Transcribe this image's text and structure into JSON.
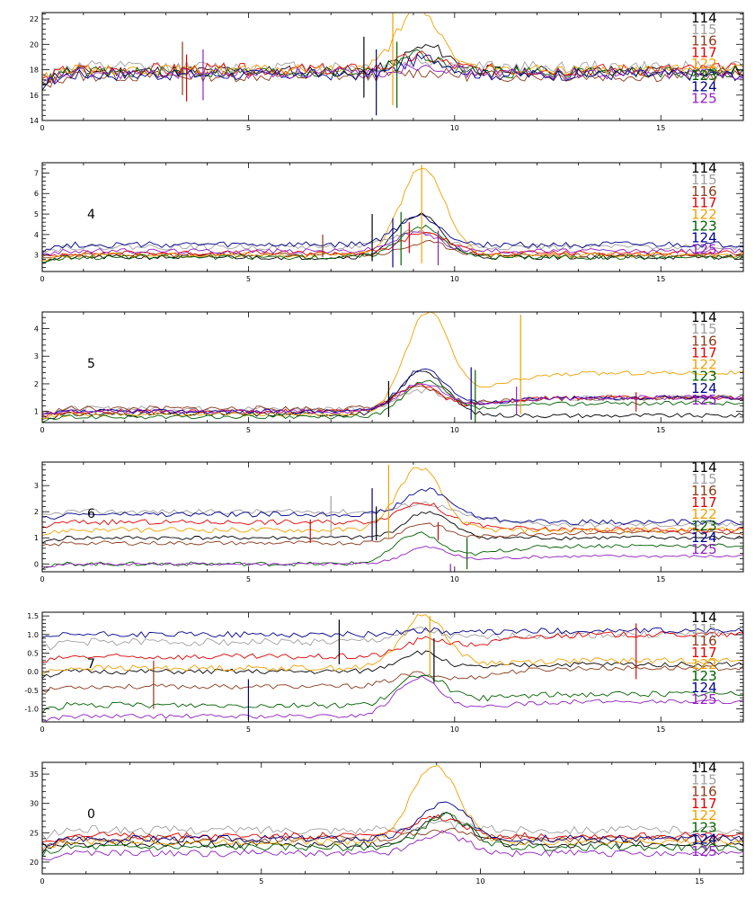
{
  "chart_data": [
    {
      "type": "line",
      "panel_label": "",
      "xlim": [
        0,
        17
      ],
      "xticks": [
        0,
        5,
        10,
        15
      ],
      "ylim": [
        14,
        22.5
      ],
      "yticks": [
        14,
        16,
        18,
        20,
        22
      ],
      "legend": [
        "114",
        "115",
        "116",
        "117",
        "122",
        "123",
        "124",
        "125"
      ],
      "series": [
        {
          "name": "114",
          "color": "#000000",
          "baseline": 17.9,
          "noise": 0.45,
          "peak": 1.9,
          "seed": 11
        },
        {
          "name": "115",
          "color": "#a0a0a0",
          "baseline": 18.2,
          "noise": 0.5,
          "peak": 0.5,
          "seed": 12
        },
        {
          "name": "116",
          "color": "#8b3a1a",
          "baseline": 17.5,
          "noise": 0.45,
          "peak": 0.3,
          "seed": 13
        },
        {
          "name": "117",
          "color": "#e00000",
          "baseline": 18.0,
          "noise": 0.5,
          "peak": 1.0,
          "seed": 14
        },
        {
          "name": "122",
          "color": "#f0a000",
          "baseline": 18.0,
          "noise": 0.4,
          "peak": 4.6,
          "seed": 15
        },
        {
          "name": "123",
          "color": "#006000",
          "baseline": 17.8,
          "noise": 0.45,
          "peak": 1.4,
          "seed": 16
        },
        {
          "name": "124",
          "color": "#00008b",
          "baseline": 17.6,
          "noise": 0.45,
          "peak": 1.3,
          "seed": 17
        },
        {
          "name": "125",
          "color": "#9020c0",
          "baseline": 17.7,
          "noise": 0.45,
          "peak": 0.7,
          "seed": 18
        }
      ],
      "markers": [
        {
          "x": 3.4,
          "y1": 16.0,
          "y2": 20.2,
          "color": "#8b3a1a"
        },
        {
          "x": 3.5,
          "y1": 15.5,
          "y2": 19.2,
          "color": "#e00000"
        },
        {
          "x": 3.9,
          "y1": 15.6,
          "y2": 19.6,
          "color": "#9020c0"
        },
        {
          "x": 7.8,
          "y1": 15.8,
          "y2": 20.6,
          "color": "#000000"
        },
        {
          "x": 8.1,
          "y1": 14.4,
          "y2": 19.6,
          "color": "#00008b"
        },
        {
          "x": 8.5,
          "y1": 15.2,
          "y2": 22.5,
          "color": "#f0a000"
        },
        {
          "x": 8.6,
          "y1": 15.0,
          "y2": 20.2,
          "color": "#006000"
        }
      ]
    },
    {
      "type": "line",
      "panel_label": "4",
      "xlim": [
        0,
        17
      ],
      "xticks": [
        0,
        5,
        10,
        15
      ],
      "ylim": [
        2.2,
        7.5
      ],
      "yticks": [
        3,
        4,
        5,
        6,
        7
      ],
      "legend": [
        "114",
        "115",
        "116",
        "117",
        "122",
        "123",
        "124",
        "125"
      ],
      "series": [
        {
          "name": "114",
          "color": "#000000",
          "baseline": 2.9,
          "noise": 0.12,
          "peak": 2.1,
          "seed": 21
        },
        {
          "name": "115",
          "color": "#a0a0a0",
          "baseline": 3.4,
          "noise": 0.15,
          "peak": 0.8,
          "seed": 22
        },
        {
          "name": "116",
          "color": "#8b3a1a",
          "baseline": 3.0,
          "noise": 0.12,
          "peak": 0.6,
          "seed": 23
        },
        {
          "name": "117",
          "color": "#e00000",
          "baseline": 3.1,
          "noise": 0.12,
          "peak": 1.0,
          "seed": 24
        },
        {
          "name": "122",
          "color": "#f0a000",
          "baseline": 3.0,
          "noise": 0.12,
          "peak": 4.3,
          "seed": 25
        },
        {
          "name": "123",
          "color": "#006000",
          "baseline": 2.9,
          "noise": 0.12,
          "peak": 1.5,
          "seed": 26
        },
        {
          "name": "124",
          "color": "#00008b",
          "baseline": 3.5,
          "noise": 0.15,
          "peak": 1.4,
          "seed": 27
        },
        {
          "name": "125",
          "color": "#9020c0",
          "baseline": 3.2,
          "noise": 0.12,
          "peak": 0.9,
          "seed": 28
        }
      ],
      "markers": [
        {
          "x": 6.8,
          "y1": 2.9,
          "y2": 4.0,
          "color": "#8b3a1a"
        },
        {
          "x": 8.0,
          "y1": 2.7,
          "y2": 5.0,
          "color": "#000000"
        },
        {
          "x": 8.5,
          "y1": 2.4,
          "y2": 4.8,
          "color": "#00008b"
        },
        {
          "x": 8.7,
          "y1": 2.5,
          "y2": 5.1,
          "color": "#006000"
        },
        {
          "x": 8.9,
          "y1": 3.1,
          "y2": 4.6,
          "color": "#e00000"
        },
        {
          "x": 9.2,
          "y1": 2.6,
          "y2": 7.4,
          "color": "#f0a000"
        },
        {
          "x": 9.6,
          "y1": 2.5,
          "y2": 4.2,
          "color": "#9020c0"
        }
      ]
    },
    {
      "type": "line",
      "panel_label": "5",
      "xlim": [
        0,
        17
      ],
      "xticks": [
        0,
        5,
        10,
        15
      ],
      "ylim": [
        0.6,
        4.6
      ],
      "yticks": [
        1,
        2,
        3,
        4
      ],
      "legend": [
        "114",
        "115",
        "116",
        "117",
        "122",
        "123",
        "124",
        "125"
      ],
      "series": [
        {
          "name": "114",
          "color": "#000000",
          "baseline": 0.9,
          "noise": 0.08,
          "peak": 1.6,
          "seed": 31,
          "tail": -0.05
        },
        {
          "name": "115",
          "color": "#a0a0a0",
          "baseline": 1.1,
          "noise": 0.1,
          "peak": 0.6,
          "seed": 32,
          "tail": 0.4
        },
        {
          "name": "116",
          "color": "#8b3a1a",
          "baseline": 1.1,
          "noise": 0.1,
          "peak": 0.7,
          "seed": 33,
          "tail": 0.4
        },
        {
          "name": "117",
          "color": "#e00000",
          "baseline": 1.0,
          "noise": 0.08,
          "peak": 0.9,
          "seed": 34,
          "tail": 0.5
        },
        {
          "name": "122",
          "color": "#f0a000",
          "baseline": 0.9,
          "noise": 0.08,
          "peak": 3.5,
          "seed": 35,
          "tail": 1.5
        },
        {
          "name": "123",
          "color": "#006000",
          "baseline": 0.8,
          "noise": 0.08,
          "peak": 1.2,
          "seed": 36,
          "tail": 0.5
        },
        {
          "name": "124",
          "color": "#00008b",
          "baseline": 1.0,
          "noise": 0.08,
          "peak": 1.5,
          "seed": 37,
          "tail": 0.5
        },
        {
          "name": "125",
          "color": "#9020c0",
          "baseline": 1.0,
          "noise": 0.08,
          "peak": 1.0,
          "seed": 38,
          "tail": 0.5
        }
      ],
      "markers": [
        {
          "x": 8.4,
          "y1": 0.8,
          "y2": 2.1,
          "color": "#000000"
        },
        {
          "x": 10.4,
          "y1": 0.7,
          "y2": 2.6,
          "color": "#00008b"
        },
        {
          "x": 10.5,
          "y1": 0.6,
          "y2": 2.5,
          "color": "#006000"
        },
        {
          "x": 11.5,
          "y1": 0.9,
          "y2": 1.9,
          "color": "#9020c0"
        },
        {
          "x": 11.6,
          "y1": 0.9,
          "y2": 4.5,
          "color": "#f0a000"
        },
        {
          "x": 14.4,
          "y1": 1.0,
          "y2": 1.7,
          "color": "#e00000"
        }
      ]
    },
    {
      "type": "line",
      "panel_label": "6",
      "xlim": [
        0,
        17
      ],
      "xticks": [
        0,
        5,
        10,
        15
      ],
      "ylim": [
        -0.3,
        3.9
      ],
      "yticks": [
        0,
        1,
        2,
        3
      ],
      "legend": [
        "114",
        "115",
        "116",
        "117",
        "122",
        "123",
        "124",
        "125"
      ],
      "series": [
        {
          "name": "114",
          "color": "#000000",
          "baseline": 1.0,
          "noise": 0.08,
          "peak": 1.0,
          "seed": 41
        },
        {
          "name": "115",
          "color": "#a0a0a0",
          "baseline": 2.0,
          "noise": 0.1,
          "peak": 0.4,
          "seed": 42,
          "tail": -0.5
        },
        {
          "name": "116",
          "color": "#8b3a1a",
          "baseline": 0.8,
          "noise": 0.08,
          "peak": 0.7,
          "seed": 43,
          "tail": 0.4
        },
        {
          "name": "117",
          "color": "#e00000",
          "baseline": 1.6,
          "noise": 0.1,
          "peak": 0.8,
          "seed": 44,
          "tail": -0.3
        },
        {
          "name": "122",
          "color": "#f0a000",
          "baseline": 1.3,
          "noise": 0.1,
          "peak": 2.4,
          "seed": 45,
          "tail": 0.0
        },
        {
          "name": "123",
          "color": "#006000",
          "baseline": 0.0,
          "noise": 0.08,
          "peak": 1.1,
          "seed": 46,
          "tail": 0.7
        },
        {
          "name": "124",
          "color": "#00008b",
          "baseline": 1.9,
          "noise": 0.1,
          "peak": 1.0,
          "seed": 47,
          "tail": -0.3
        },
        {
          "name": "125",
          "color": "#9020c0",
          "baseline": 0.0,
          "noise": 0.06,
          "peak": 0.6,
          "seed": 48,
          "tail": 0.3
        }
      ],
      "markers": [
        {
          "x": 6.5,
          "y1": 0.8,
          "y2": 1.7,
          "color": "#e00000"
        },
        {
          "x": 7.0,
          "y1": 1.0,
          "y2": 2.6,
          "color": "#a0a0a0"
        },
        {
          "x": 8.0,
          "y1": 0.9,
          "y2": 2.9,
          "color": "#00008b"
        },
        {
          "x": 8.1,
          "y1": 0.9,
          "y2": 2.2,
          "color": "#000000"
        },
        {
          "x": 8.4,
          "y1": 1.0,
          "y2": 3.8,
          "color": "#f0a000"
        },
        {
          "x": 9.6,
          "y1": 0.9,
          "y2": 1.6,
          "color": "#e00000"
        },
        {
          "x": 9.9,
          "y1": -0.3,
          "y2": 0.0,
          "color": "#9020c0"
        },
        {
          "x": 10.3,
          "y1": -0.2,
          "y2": 1.0,
          "color": "#006000"
        }
      ]
    },
    {
      "type": "line",
      "panel_label": "7",
      "xlim": [
        0,
        17
      ],
      "xticks": [
        0,
        5,
        10,
        15
      ],
      "ylim": [
        -1.35,
        1.6
      ],
      "yticks": [
        -1.0,
        -0.5,
        0.0,
        0.5,
        1.0,
        1.5
      ],
      "legend": [
        "114",
        "115",
        "116",
        "117",
        "122",
        "123",
        "124",
        "125"
      ],
      "series": [
        {
          "name": "114",
          "color": "#000000",
          "baseline": 0.0,
          "noise": 0.07,
          "peak": 0.5,
          "seed": 51,
          "tail": 0.2
        },
        {
          "name": "115",
          "color": "#a0a0a0",
          "baseline": 0.8,
          "noise": 0.1,
          "peak": 0.3,
          "seed": 52,
          "tail": 0.2
        },
        {
          "name": "116",
          "color": "#8b3a1a",
          "baseline": -0.4,
          "noise": 0.07,
          "peak": 0.3,
          "seed": 53,
          "tail": 0.5
        },
        {
          "name": "117",
          "color": "#e00000",
          "baseline": 0.4,
          "noise": 0.08,
          "peak": 0.4,
          "seed": 54,
          "tail": 0.6
        },
        {
          "name": "122",
          "color": "#f0a000",
          "baseline": 0.1,
          "noise": 0.08,
          "peak": 1.4,
          "seed": 55,
          "tail": 0.2
        },
        {
          "name": "123",
          "color": "#006000",
          "baseline": -0.9,
          "noise": 0.08,
          "peak": 0.8,
          "seed": 56,
          "tail": 0.3
        },
        {
          "name": "124",
          "color": "#00008b",
          "baseline": 1.0,
          "noise": 0.08,
          "peak": 0.1,
          "seed": 57,
          "tail": 0.1
        },
        {
          "name": "125",
          "color": "#9020c0",
          "baseline": -1.2,
          "noise": 0.06,
          "peak": 1.0,
          "seed": 58,
          "tail": 0.4
        }
      ],
      "markers": [
        {
          "x": 2.7,
          "y1": -1.0,
          "y2": 0.3,
          "color": "#8b3a1a"
        },
        {
          "x": 5.0,
          "y1": -1.3,
          "y2": -0.2,
          "color": "#00008b"
        },
        {
          "x": 7.2,
          "y1": 0.2,
          "y2": 1.4,
          "color": "#000000"
        },
        {
          "x": 9.4,
          "y1": -0.1,
          "y2": 1.5,
          "color": "#f0a000"
        },
        {
          "x": 9.5,
          "y1": -0.3,
          "y2": 0.9,
          "color": "#000000"
        },
        {
          "x": 14.4,
          "y1": -0.2,
          "y2": 1.3,
          "color": "#e00000"
        }
      ]
    },
    {
      "type": "line",
      "panel_label": "0",
      "xlim": [
        0,
        16
      ],
      "xticks": [
        0,
        5,
        10,
        15
      ],
      "ylim": [
        18,
        37
      ],
      "yticks": [
        20,
        25,
        30,
        35
      ],
      "legend": [
        "114",
        "115",
        "116",
        "117",
        "122",
        "123",
        "124",
        "125"
      ],
      "series": [
        {
          "name": "114",
          "color": "#000000",
          "baseline": 23.0,
          "noise": 0.6,
          "peak": 5.0,
          "seed": 61
        },
        {
          "name": "115",
          "color": "#a0a0a0",
          "baseline": 25.5,
          "noise": 0.7,
          "peak": 1.0,
          "seed": 62
        },
        {
          "name": "116",
          "color": "#8b3a1a",
          "baseline": 24.0,
          "noise": 0.6,
          "peak": 1.5,
          "seed": 63
        },
        {
          "name": "117",
          "color": "#e00000",
          "baseline": 24.5,
          "noise": 0.6,
          "peak": 3.0,
          "seed": 64
        },
        {
          "name": "122",
          "color": "#f0a000",
          "baseline": 23.5,
          "noise": 0.6,
          "peak": 13.0,
          "seed": 65
        },
        {
          "name": "123",
          "color": "#006000",
          "baseline": 22.5,
          "noise": 0.6,
          "peak": 5.5,
          "seed": 66
        },
        {
          "name": "124",
          "color": "#00008b",
          "baseline": 24.0,
          "noise": 0.6,
          "peak": 6.0,
          "seed": 67
        },
        {
          "name": "125",
          "color": "#9020c0",
          "baseline": 21.5,
          "noise": 0.6,
          "peak": 3.5,
          "seed": 68
        }
      ],
      "markers": []
    }
  ]
}
